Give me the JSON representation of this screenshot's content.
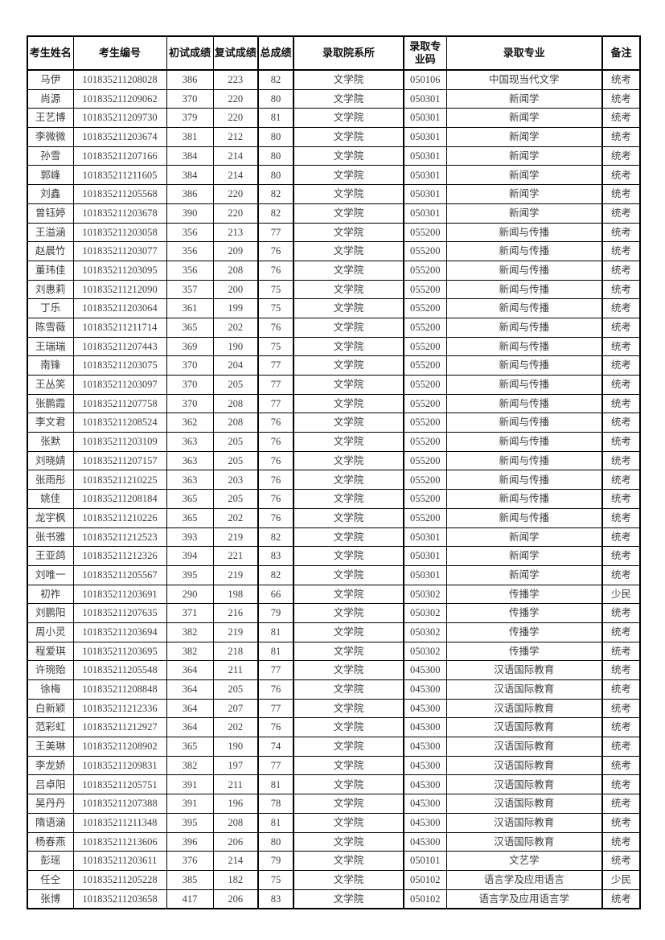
{
  "table": {
    "headers": [
      "考生姓名",
      "考生编号",
      "初试成绩",
      "复试成绩",
      "总成绩",
      "录取院系所",
      "录取专业码",
      "录取专业",
      "备注"
    ],
    "col_keys": [
      "name",
      "candidate_no",
      "initial_score",
      "retest_score",
      "total_score",
      "department",
      "major_code",
      "major",
      "note"
    ],
    "rows": [
      [
        "马伊",
        "101835211208028",
        "386",
        "223",
        "82",
        "文学院",
        "050106",
        "中国现当代文学",
        "统考"
      ],
      [
        "尚源",
        "101835211209062",
        "370",
        "220",
        "80",
        "文学院",
        "050301",
        "新闻学",
        "统考"
      ],
      [
        "王艺博",
        "101835211209730",
        "379",
        "220",
        "81",
        "文学院",
        "050301",
        "新闻学",
        "统考"
      ],
      [
        "李微微",
        "101835211203674",
        "381",
        "212",
        "80",
        "文学院",
        "050301",
        "新闻学",
        "统考"
      ],
      [
        "孙雪",
        "101835211207166",
        "384",
        "214",
        "80",
        "文学院",
        "050301",
        "新闻学",
        "统考"
      ],
      [
        "郭峰",
        "101835211211605",
        "384",
        "214",
        "80",
        "文学院",
        "050301",
        "新闻学",
        "统考"
      ],
      [
        "刘鑫",
        "101835211205568",
        "386",
        "220",
        "82",
        "文学院",
        "050301",
        "新闻学",
        "统考"
      ],
      [
        "曾钰婷",
        "101835211203678",
        "390",
        "220",
        "82",
        "文学院",
        "050301",
        "新闻学",
        "统考"
      ],
      [
        "王溢涵",
        "101835211203058",
        "356",
        "213",
        "77",
        "文学院",
        "055200",
        "新闻与传播",
        "统考"
      ],
      [
        "赵晨竹",
        "101835211203077",
        "356",
        "209",
        "76",
        "文学院",
        "055200",
        "新闻与传播",
        "统考"
      ],
      [
        "董玮佳",
        "101835211203095",
        "356",
        "208",
        "76",
        "文学院",
        "055200",
        "新闻与传播",
        "统考"
      ],
      [
        "刘惠莉",
        "101835211212090",
        "357",
        "200",
        "75",
        "文学院",
        "055200",
        "新闻与传播",
        "统考"
      ],
      [
        "丁乐",
        "101835211203064",
        "361",
        "199",
        "75",
        "文学院",
        "055200",
        "新闻与传播",
        "统考"
      ],
      [
        "陈雪薇",
        "101835211211714",
        "365",
        "202",
        "76",
        "文学院",
        "055200",
        "新闻与传播",
        "统考"
      ],
      [
        "王瑞瑞",
        "101835211207443",
        "369",
        "190",
        "75",
        "文学院",
        "055200",
        "新闻与传播",
        "统考"
      ],
      [
        "南锋",
        "101835211203075",
        "370",
        "204",
        "77",
        "文学院",
        "055200",
        "新闻与传播",
        "统考"
      ],
      [
        "王丛笑",
        "101835211203097",
        "370",
        "205",
        "77",
        "文学院",
        "055200",
        "新闻与传播",
        "统考"
      ],
      [
        "张鹏霞",
        "101835211207758",
        "370",
        "208",
        "77",
        "文学院",
        "055200",
        "新闻与传播",
        "统考"
      ],
      [
        "李文君",
        "101835211208524",
        "362",
        "208",
        "76",
        "文学院",
        "055200",
        "新闻与传播",
        "统考"
      ],
      [
        "张默",
        "101835211203109",
        "363",
        "205",
        "76",
        "文学院",
        "055200",
        "新闻与传播",
        "统考"
      ],
      [
        "刘晓婧",
        "101835211207157",
        "363",
        "205",
        "76",
        "文学院",
        "055200",
        "新闻与传播",
        "统考"
      ],
      [
        "张雨彤",
        "101835211210225",
        "363",
        "203",
        "76",
        "文学院",
        "055200",
        "新闻与传播",
        "统考"
      ],
      [
        "姚佳",
        "101835211208184",
        "365",
        "205",
        "76",
        "文学院",
        "055200",
        "新闻与传播",
        "统考"
      ],
      [
        "龙宇枫",
        "101835211210226",
        "365",
        "202",
        "76",
        "文学院",
        "055200",
        "新闻与传播",
        "统考"
      ],
      [
        "张书雅",
        "101835211212523",
        "393",
        "219",
        "82",
        "文学院",
        "050301",
        "新闻学",
        "统考"
      ],
      [
        "王亚鸽",
        "101835211212326",
        "394",
        "221",
        "83",
        "文学院",
        "050301",
        "新闻学",
        "统考"
      ],
      [
        "刘唯一",
        "101835211205567",
        "395",
        "219",
        "82",
        "文学院",
        "050301",
        "新闻学",
        "统考"
      ],
      [
        "初祚",
        "101835211203691",
        "290",
        "198",
        "66",
        "文学院",
        "050302",
        "传播学",
        "少民"
      ],
      [
        "刘鹏阳",
        "101835211207635",
        "371",
        "216",
        "79",
        "文学院",
        "050302",
        "传播学",
        "统考"
      ],
      [
        "周小灵",
        "101835211203694",
        "382",
        "219",
        "81",
        "文学院",
        "050302",
        "传播学",
        "统考"
      ],
      [
        "程爱琪",
        "101835211203695",
        "382",
        "218",
        "81",
        "文学院",
        "050302",
        "传播学",
        "统考"
      ],
      [
        "许琬贻",
        "101835211205548",
        "364",
        "211",
        "77",
        "文学院",
        "045300",
        "汉语国际教育",
        "统考"
      ],
      [
        "徐梅",
        "101835211208848",
        "364",
        "205",
        "76",
        "文学院",
        "045300",
        "汉语国际教育",
        "统考"
      ],
      [
        "白新颖",
        "101835211212336",
        "364",
        "207",
        "77",
        "文学院",
        "045300",
        "汉语国际教育",
        "统考"
      ],
      [
        "范彩虹",
        "101835211212927",
        "364",
        "202",
        "76",
        "文学院",
        "045300",
        "汉语国际教育",
        "统考"
      ],
      [
        "王美琳",
        "101835211208902",
        "365",
        "190",
        "74",
        "文学院",
        "045300",
        "汉语国际教育",
        "统考"
      ],
      [
        "李龙娇",
        "101835211209831",
        "382",
        "197",
        "77",
        "文学院",
        "045300",
        "汉语国际教育",
        "统考"
      ],
      [
        "吕卓阳",
        "101835211205751",
        "391",
        "211",
        "81",
        "文学院",
        "045300",
        "汉语国际教育",
        "统考"
      ],
      [
        "吴丹丹",
        "101835211207388",
        "391",
        "196",
        "78",
        "文学院",
        "045300",
        "汉语国际教育",
        "统考"
      ],
      [
        "隋语涵",
        "101835211211348",
        "395",
        "208",
        "81",
        "文学院",
        "045300",
        "汉语国际教育",
        "统考"
      ],
      [
        "杨春燕",
        "101835211213606",
        "396",
        "206",
        "80",
        "文学院",
        "045300",
        "汉语国际教育",
        "统考"
      ],
      [
        "彭瑶",
        "101835211203611",
        "376",
        "214",
        "79",
        "文学院",
        "050101",
        "文艺学",
        "统考"
      ],
      [
        "任仝",
        "101835211205228",
        "385",
        "182",
        "75",
        "文学院",
        "050102",
        "语言学及应用语言",
        "少民"
      ],
      [
        "张博",
        "101835211203658",
        "417",
        "206",
        "83",
        "文学院",
        "050102",
        "语言学及应用语言学",
        "统考"
      ]
    ]
  },
  "colors": {
    "background": "#ffffff",
    "border": "#000000",
    "header_text": "#111111",
    "cell_text": "#3d3d3d"
  }
}
